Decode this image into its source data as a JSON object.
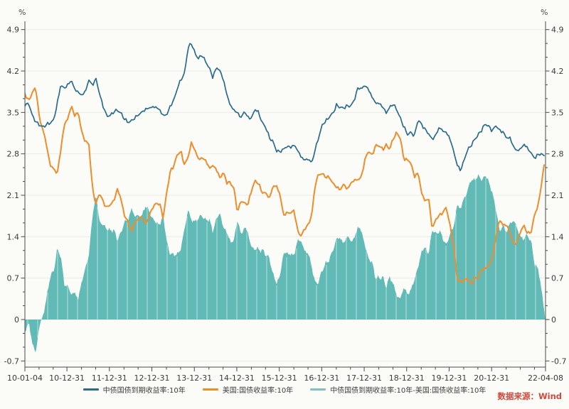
{
  "chart": {
    "unit_label_left": "%",
    "unit_label_right": "%",
    "source_label": "数据来源：Wind",
    "colors": {
      "china_line": "#2b6b8d",
      "us_line": "#ee8d2b",
      "spread_area": "#58b6b2",
      "spread_legend_dash": "#82c0bc",
      "source_text": "#cd4a3e",
      "axis": "#4a4a4a",
      "grid": "#ebebe6",
      "background": "#fbfbf8",
      "label_text": "#3a3a3a"
    },
    "legend": [
      {
        "label": "中债国债到期收益率:10年",
        "type": "line"
      },
      {
        "label": "美国:国债收益率:10年",
        "type": "line"
      },
      {
        "label": "中债国债到期收益率:10年-美国:国债收益率:10年",
        "type": "area"
      }
    ]
  },
  "chart_data": {
    "type": "line",
    "title": "",
    "xlabel": "",
    "ylabel": "%",
    "x_start": "2010-01-04",
    "x_end": "2022-04-08",
    "x_unit": "monthly-samples",
    "ylim": [
      -0.81,
      5.05
    ],
    "grid": true,
    "legend_position": "bottom-center",
    "y_ticks": [
      4.9,
      4.2,
      3.5,
      2.8,
      2.1,
      1.4,
      0.7,
      0,
      -0.7
    ],
    "x_ticks": [
      {
        "label": "10-01-04",
        "t": 2010.01
      },
      {
        "label": "10-12-31",
        "t": 2011.0
      },
      {
        "label": "11-12-31",
        "t": 2012.0
      },
      {
        "label": "12-12-31",
        "t": 2013.0
      },
      {
        "label": "13-12-31",
        "t": 2014.0
      },
      {
        "label": "14-12-31",
        "t": 2015.0
      },
      {
        "label": "15-12-31",
        "t": 2016.0
      },
      {
        "label": "16-12-31",
        "t": 2017.0
      },
      {
        "label": "17-12-31",
        "t": 2018.0
      },
      {
        "label": "18-12-31",
        "t": 2019.0
      },
      {
        "label": "19-12-31",
        "t": 2020.0
      },
      {
        "label": "20-12-31",
        "t": 2021.0
      },
      {
        "label": "22-04-08",
        "t": 2022.27
      }
    ],
    "series": [
      {
        "name": "中债国债到期收益率:10年",
        "type": "line",
        "values": [
          3.62,
          3.65,
          3.45,
          3.35,
          3.3,
          3.26,
          3.3,
          3.32,
          3.36,
          3.62,
          3.95,
          3.9,
          3.96,
          4.05,
          3.9,
          3.85,
          3.8,
          3.86,
          4.05,
          3.95,
          4.06,
          3.8,
          3.6,
          3.44,
          3.45,
          3.52,
          3.55,
          3.5,
          3.4,
          3.33,
          3.35,
          3.4,
          3.45,
          3.5,
          3.55,
          3.58,
          3.6,
          3.6,
          3.55,
          3.45,
          3.46,
          3.6,
          3.7,
          3.9,
          4.05,
          4.15,
          4.6,
          4.68,
          4.5,
          4.42,
          4.48,
          4.35,
          4.25,
          4.08,
          4.25,
          4.2,
          4.05,
          3.8,
          3.62,
          3.55,
          3.5,
          3.42,
          3.52,
          3.4,
          3.4,
          3.55,
          3.48,
          3.32,
          3.25,
          3.08,
          3.02,
          2.86,
          2.84,
          2.88,
          2.92,
          2.9,
          2.94,
          2.85,
          2.74,
          2.7,
          2.72,
          2.66,
          2.9,
          3.1,
          3.3,
          3.35,
          3.42,
          3.48,
          3.62,
          3.58,
          3.58,
          3.62,
          3.62,
          3.72,
          3.92,
          3.9,
          3.95,
          3.88,
          3.75,
          3.65,
          3.65,
          3.6,
          3.5,
          3.6,
          3.65,
          3.55,
          3.4,
          3.25,
          3.12,
          3.15,
          3.1,
          3.38,
          3.3,
          3.22,
          3.15,
          3.05,
          3.12,
          3.25,
          3.18,
          3.15,
          3.05,
          2.85,
          2.62,
          2.52,
          2.7,
          2.88,
          2.95,
          3.05,
          3.12,
          3.2,
          3.3,
          3.25,
          3.18,
          3.28,
          3.2,
          3.18,
          3.08,
          3.08,
          2.92,
          2.85,
          2.88,
          2.95,
          2.88,
          2.8,
          2.72,
          2.8,
          2.8,
          2.77
        ]
      },
      {
        "name": "美国:国债收益率:10年",
        "type": "line",
        "values": [
          3.82,
          3.7,
          3.85,
          3.92,
          3.4,
          3.2,
          2.95,
          2.6,
          2.55,
          2.45,
          2.85,
          3.3,
          3.4,
          3.62,
          3.45,
          3.5,
          3.15,
          3.0,
          2.95,
          2.2,
          1.95,
          2.15,
          2.0,
          1.9,
          1.95,
          2.0,
          2.2,
          2.05,
          1.75,
          1.65,
          1.48,
          1.65,
          1.7,
          1.75,
          1.62,
          1.75,
          1.9,
          1.96,
          1.95,
          1.7,
          2.15,
          2.5,
          2.6,
          2.8,
          2.85,
          2.62,
          2.75,
          3.0,
          2.85,
          2.7,
          2.72,
          2.68,
          2.55,
          2.6,
          2.55,
          2.4,
          2.5,
          2.32,
          2.32,
          2.2,
          1.8,
          2.0,
          1.95,
          1.95,
          2.2,
          2.35,
          2.3,
          2.15,
          2.15,
          2.05,
          2.25,
          2.25,
          2.1,
          1.75,
          1.8,
          1.8,
          1.85,
          1.5,
          1.42,
          1.55,
          1.6,
          1.78,
          2.3,
          2.45,
          2.45,
          2.4,
          2.4,
          2.3,
          2.25,
          2.2,
          2.3,
          2.2,
          2.3,
          2.35,
          2.35,
          2.4,
          2.7,
          2.85,
          2.78,
          2.95,
          2.95,
          2.88,
          2.95,
          2.88,
          3.05,
          3.15,
          3.05,
          2.7,
          2.7,
          2.65,
          2.42,
          2.5,
          2.15,
          2.0,
          2.05,
          1.52,
          1.68,
          1.75,
          1.8,
          1.9,
          1.6,
          1.3,
          0.7,
          0.64,
          0.66,
          0.7,
          0.58,
          0.7,
          0.68,
          0.85,
          0.86,
          0.92,
          1.05,
          1.4,
          1.7,
          1.6,
          1.6,
          1.45,
          1.25,
          1.3,
          1.5,
          1.58,
          1.45,
          1.5,
          1.8,
          1.95,
          2.35,
          2.76
        ]
      },
      {
        "name": "中债国债到期收益率:10年-美国:国债收益率:10年",
        "type": "area",
        "values": [
          -0.2,
          -0.05,
          -0.4,
          -0.57,
          -0.1,
          0.06,
          0.35,
          0.72,
          0.81,
          1.17,
          1.1,
          0.6,
          0.56,
          0.43,
          0.45,
          0.35,
          0.65,
          0.86,
          1.1,
          1.75,
          2.11,
          1.65,
          1.6,
          1.54,
          1.5,
          1.52,
          1.35,
          1.45,
          1.65,
          1.68,
          1.87,
          1.75,
          1.75,
          1.75,
          1.93,
          1.83,
          1.7,
          1.64,
          1.6,
          1.75,
          1.31,
          1.1,
          1.1,
          1.1,
          1.2,
          1.53,
          1.85,
          1.68,
          1.65,
          1.72,
          1.76,
          1.67,
          1.7,
          1.48,
          1.7,
          1.8,
          1.55,
          1.48,
          1.3,
          1.35,
          1.7,
          1.42,
          1.57,
          1.45,
          1.2,
          1.2,
          1.18,
          1.17,
          1.1,
          1.03,
          0.77,
          0.61,
          0.74,
          1.13,
          1.12,
          1.1,
          1.09,
          1.35,
          1.32,
          1.15,
          1.12,
          0.88,
          0.6,
          0.65,
          0.85,
          0.95,
          1.02,
          1.18,
          1.37,
          1.38,
          1.28,
          1.42,
          1.32,
          1.37,
          1.57,
          1.5,
          1.25,
          1.03,
          0.97,
          0.7,
          0.7,
          0.72,
          0.55,
          0.72,
          0.6,
          0.4,
          0.35,
          0.55,
          0.42,
          0.5,
          0.68,
          0.88,
          1.15,
          1.22,
          1.1,
          1.53,
          1.44,
          1.5,
          1.38,
          1.25,
          1.45,
          1.55,
          1.92,
          1.88,
          2.04,
          2.18,
          2.37,
          2.35,
          2.44,
          2.35,
          2.44,
          2.33,
          2.13,
          1.88,
          1.5,
          1.58,
          1.48,
          1.63,
          1.67,
          1.55,
          1.38,
          1.37,
          1.43,
          1.3,
          0.92,
          0.85,
          0.45,
          0.01
        ]
      }
    ]
  }
}
